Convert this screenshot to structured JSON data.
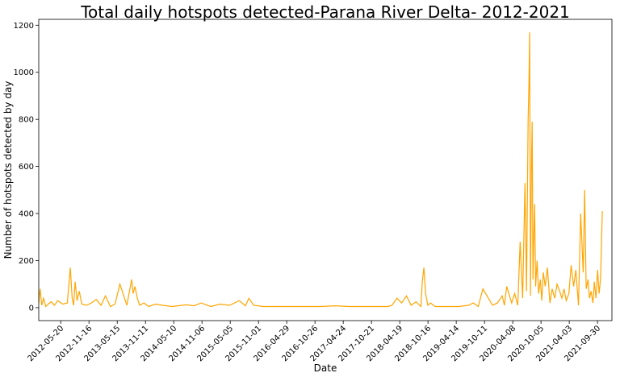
{
  "chart_data": {
    "type": "line",
    "title": "Total daily hotspots detected-Parana River Delta- 2012-2021",
    "xlabel": "Date",
    "ylabel": "Number of hotspots detected by day",
    "xlim": [
      "2012-01-01",
      "2021-12-31"
    ],
    "ylim": [
      -55,
      1225
    ],
    "yticks": [
      0,
      200,
      400,
      600,
      800,
      1000,
      1200
    ],
    "xticks": [
      "2012-05-20",
      "2012-11-16",
      "2013-05-15",
      "2013-11-11",
      "2014-05-10",
      "2014-11-06",
      "2015-05-05",
      "2015-11-01",
      "2016-04-29",
      "2016-10-26",
      "2017-04-24",
      "2017-10-21",
      "2018-04-19",
      "2018-10-16",
      "2019-04-14",
      "2019-10-11",
      "2020-04-08",
      "2020-10-05",
      "2021-04-03",
      "2021-09-30"
    ],
    "color": "#ffa500",
    "grid": false,
    "series": [
      {
        "x": [
          "2012-01-01",
          "2012-01-10",
          "2012-01-20",
          "2012-02-01",
          "2012-02-15",
          "2012-03-01",
          "2012-03-20",
          "2012-04-10",
          "2012-05-01",
          "2012-06-01",
          "2012-07-01",
          "2012-07-20",
          "2012-08-01",
          "2012-08-10",
          "2012-08-20",
          "2012-09-01",
          "2012-09-15",
          "2012-10-01",
          "2012-11-01",
          "2012-12-01",
          "2013-01-01",
          "2013-02-01",
          "2013-03-01",
          "2013-04-01",
          "2013-05-01",
          "2013-06-01",
          "2013-07-01",
          "2013-07-15",
          "2013-08-01",
          "2013-08-15",
          "2013-08-25",
          "2013-09-05",
          "2013-09-20",
          "2013-10-05",
          "2013-11-01",
          "2013-12-01",
          "2014-01-15",
          "2014-03-01",
          "2014-05-01",
          "2014-07-01",
          "2014-08-01",
          "2014-09-15",
          "2014-11-01",
          "2015-01-01",
          "2015-03-01",
          "2015-05-01",
          "2015-07-01",
          "2015-08-10",
          "2015-09-01",
          "2015-10-01",
          "2015-12-01",
          "2016-03-01",
          "2016-06-01",
          "2016-09-01",
          "2016-12-01",
          "2017-03-01",
          "2017-06-01",
          "2017-09-01",
          "2017-12-01",
          "2018-02-01",
          "2018-03-01",
          "2018-04-01",
          "2018-05-01",
          "2018-06-01",
          "2018-07-01",
          "2018-08-01",
          "2018-09-01",
          "2018-09-10",
          "2018-09-20",
          "2018-10-01",
          "2018-10-15",
          "2018-11-01",
          "2018-12-01",
          "2019-02-01",
          "2019-05-01",
          "2019-07-01",
          "2019-08-01",
          "2019-09-01",
          "2019-10-01",
          "2019-12-01",
          "2020-01-01",
          "2020-02-01",
          "2020-02-15",
          "2020-03-01",
          "2020-04-01",
          "2020-04-20",
          "2020-05-10",
          "2020-05-25",
          "2020-06-10",
          "2020-06-25",
          "2020-07-05",
          "2020-07-15",
          "2020-07-20",
          "2020-07-25",
          "2020-07-30",
          "2020-08-05",
          "2020-08-10",
          "2020-08-15",
          "2020-08-20",
          "2020-08-25",
          "2020-09-01",
          "2020-09-10",
          "2020-09-20",
          "2020-10-01",
          "2020-10-10",
          "2020-10-20",
          "2020-11-01",
          "2020-11-15",
          "2020-12-01",
          "2020-12-15",
          "2021-01-01",
          "2021-01-15",
          "2021-02-01",
          "2021-02-15",
          "2021-03-01",
          "2021-03-15",
          "2021-04-01",
          "2021-04-15",
          "2021-05-01",
          "2021-05-15",
          "2021-06-01",
          "2021-06-15",
          "2021-07-01",
          "2021-07-10",
          "2021-07-20",
          "2021-08-01",
          "2021-08-10",
          "2021-08-20",
          "2021-09-01",
          "2021-09-10",
          "2021-09-20",
          "2021-10-01",
          "2021-10-10",
          "2021-10-15",
          "2021-10-20",
          "2021-10-31"
        ],
        "y": [
          20,
          80,
          10,
          40,
          5,
          15,
          25,
          10,
          30,
          15,
          20,
          170,
          40,
          10,
          110,
          30,
          70,
          15,
          10,
          20,
          35,
          10,
          50,
          5,
          15,
          100,
          40,
          10,
          70,
          120,
          60,
          90,
          40,
          10,
          20,
          5,
          15,
          10,
          5,
          10,
          12,
          8,
          20,
          5,
          15,
          10,
          30,
          8,
          40,
          10,
          5,
          5,
          5,
          5,
          5,
          8,
          5,
          5,
          5,
          5,
          10,
          40,
          20,
          50,
          10,
          25,
          5,
          110,
          170,
          60,
          10,
          20,
          5,
          5,
          5,
          10,
          20,
          5,
          80,
          10,
          20,
          50,
          10,
          90,
          20,
          60,
          10,
          280,
          40,
          530,
          70,
          800,
          950,
          1170,
          50,
          600,
          790,
          120,
          300,
          440,
          90,
          200,
          60,
          120,
          30,
          150,
          90,
          170,
          20,
          80,
          40,
          100,
          70,
          40,
          80,
          30,
          60,
          180,
          90,
          160,
          10,
          400,
          150,
          500,
          80,
          120,
          40,
          70,
          20,
          110,
          40,
          160,
          60,
          90,
          130,
          410
        ]
      }
    ]
  }
}
